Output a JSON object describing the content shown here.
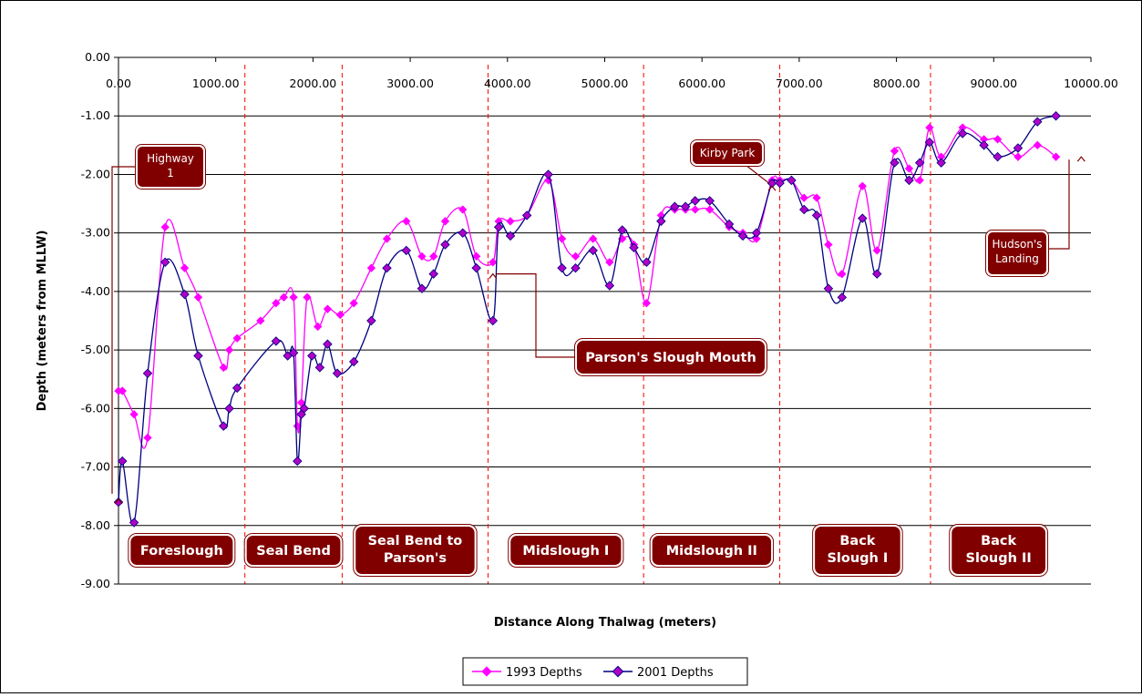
{
  "chart_data": {
    "type": "line",
    "xlabel": "Distance Along Thalwag (meters)",
    "ylabel": "Depth (meters from MLLW)",
    "xlim": [
      0,
      10000
    ],
    "ylim": [
      -9,
      0
    ],
    "x_ticks": [
      "0.00",
      "1000.00",
      "2000.00",
      "3000.00",
      "4000.00",
      "5000.00",
      "6000.00",
      "7000.00",
      "8000.00",
      "9000.00",
      "10000.00"
    ],
    "y_ticks": [
      "0.00",
      "-1.00",
      "-2.00",
      "-3.00",
      "-4.00",
      "-5.00",
      "-6.00",
      "-7.00",
      "-8.00",
      "-9.00"
    ],
    "grid": "horizontal",
    "legend_position": "bottom",
    "series": [
      {
        "name": "1993 Depths",
        "color": "#ff00ff",
        "points": [
          [
            0,
            -5.7
          ],
          [
            40,
            -5.7
          ],
          [
            160,
            -6.1
          ],
          [
            300,
            -6.5
          ],
          [
            480,
            -2.9
          ],
          [
            680,
            -3.6
          ],
          [
            820,
            -4.1
          ],
          [
            1140,
            -5.0
          ],
          [
            1080,
            -5.3
          ],
          [
            1220,
            -4.8
          ],
          [
            1460,
            -4.5
          ],
          [
            1620,
            -4.2
          ],
          [
            1700,
            -4.1
          ],
          [
            1800,
            -4.1
          ],
          [
            1840,
            -6.3
          ],
          [
            1880,
            -5.9
          ],
          [
            1940,
            -4.1
          ],
          [
            2050,
            -4.6
          ],
          [
            2150,
            -4.3
          ],
          [
            2280,
            -4.4
          ],
          [
            2420,
            -4.2
          ],
          [
            2600,
            -3.6
          ],
          [
            2760,
            -3.1
          ],
          [
            2960,
            -2.8
          ],
          [
            3120,
            -3.4
          ],
          [
            3240,
            -3.4
          ],
          [
            3360,
            -2.8
          ],
          [
            3540,
            -2.6
          ],
          [
            3680,
            -3.4
          ],
          [
            3850,
            -3.5
          ],
          [
            3910,
            -2.8
          ],
          [
            4030,
            -2.8
          ],
          [
            4200,
            -2.7
          ],
          [
            4420,
            -2.1
          ],
          [
            4560,
            -3.1
          ],
          [
            4700,
            -3.4
          ],
          [
            4880,
            -3.1
          ],
          [
            5050,
            -3.5
          ],
          [
            5180,
            -3.1
          ],
          [
            5300,
            -3.2
          ],
          [
            5430,
            -4.2
          ],
          [
            5580,
            -2.7
          ],
          [
            5720,
            -2.6
          ],
          [
            5830,
            -2.6
          ],
          [
            5930,
            -2.6
          ],
          [
            6080,
            -2.6
          ],
          [
            6280,
            -2.9
          ],
          [
            6420,
            -3.0
          ],
          [
            6560,
            -3.1
          ],
          [
            6720,
            -2.1
          ],
          [
            6800,
            -2.1
          ],
          [
            6920,
            -2.1
          ],
          [
            7050,
            -2.4
          ],
          [
            7180,
            -2.4
          ],
          [
            7300,
            -3.2
          ],
          [
            7440,
            -3.7
          ],
          [
            7650,
            -2.2
          ],
          [
            7800,
            -3.3
          ],
          [
            7980,
            -1.6
          ],
          [
            8130,
            -1.9
          ],
          [
            8240,
            -2.1
          ],
          [
            8340,
            -1.2
          ],
          [
            8460,
            -1.7
          ],
          [
            8680,
            -1.2
          ],
          [
            8900,
            -1.4
          ],
          [
            9040,
            -1.4
          ],
          [
            9250,
            -1.7
          ],
          [
            9450,
            -1.5
          ],
          [
            9640,
            -1.7
          ]
        ]
      },
      {
        "name": "2001 Depths",
        "color": "#000080",
        "marker_color": "#b000c8",
        "points": [
          [
            0,
            -7.6
          ],
          [
            40,
            -6.9
          ],
          [
            160,
            -7.95
          ],
          [
            300,
            -5.4
          ],
          [
            480,
            -3.5
          ],
          [
            680,
            -4.05
          ],
          [
            820,
            -5.1
          ],
          [
            1140,
            -6.0
          ],
          [
            1080,
            -6.3
          ],
          [
            1220,
            -5.65
          ],
          [
            1620,
            -4.85
          ],
          [
            1740,
            -5.1
          ],
          [
            1800,
            -5.05
          ],
          [
            1840,
            -6.9
          ],
          [
            1880,
            -6.1
          ],
          [
            1910,
            -6.0
          ],
          [
            1990,
            -5.1
          ],
          [
            2070,
            -5.3
          ],
          [
            2150,
            -4.9
          ],
          [
            2250,
            -5.4
          ],
          [
            2420,
            -5.2
          ],
          [
            2600,
            -4.5
          ],
          [
            2760,
            -3.6
          ],
          [
            2960,
            -3.3
          ],
          [
            3120,
            -3.95
          ],
          [
            3240,
            -3.7
          ],
          [
            3360,
            -3.2
          ],
          [
            3540,
            -3.0
          ],
          [
            3680,
            -3.6
          ],
          [
            3850,
            -4.5
          ],
          [
            3910,
            -2.9
          ],
          [
            4030,
            -3.05
          ],
          [
            4200,
            -2.7
          ],
          [
            4420,
            -2.0
          ],
          [
            4560,
            -3.6
          ],
          [
            4700,
            -3.6
          ],
          [
            4880,
            -3.3
          ],
          [
            5050,
            -3.9
          ],
          [
            5180,
            -2.95
          ],
          [
            5300,
            -3.25
          ],
          [
            5430,
            -3.5
          ],
          [
            5580,
            -2.8
          ],
          [
            5720,
            -2.55
          ],
          [
            5830,
            -2.55
          ],
          [
            5930,
            -2.45
          ],
          [
            6080,
            -2.45
          ],
          [
            6280,
            -2.85
          ],
          [
            6420,
            -3.05
          ],
          [
            6560,
            -3.0
          ],
          [
            6720,
            -2.15
          ],
          [
            6800,
            -2.15
          ],
          [
            6920,
            -2.1
          ],
          [
            7050,
            -2.6
          ],
          [
            7180,
            -2.7
          ],
          [
            7300,
            -3.95
          ],
          [
            7440,
            -4.1
          ],
          [
            7650,
            -2.75
          ],
          [
            7800,
            -3.7
          ],
          [
            7980,
            -1.8
          ],
          [
            8130,
            -2.1
          ],
          [
            8240,
            -1.8
          ],
          [
            8340,
            -1.45
          ],
          [
            8460,
            -1.8
          ],
          [
            8680,
            -1.3
          ],
          [
            8900,
            -1.5
          ],
          [
            9040,
            -1.7
          ],
          [
            9250,
            -1.55
          ],
          [
            9450,
            -1.1
          ],
          [
            9640,
            -1.0
          ]
        ]
      }
    ],
    "section_boundaries": [
      1300,
      2300,
      3800,
      5400,
      6800,
      8350
    ],
    "section_labels": [
      {
        "lines": [
          "Foreslough"
        ],
        "x": 650
      },
      {
        "lines": [
          "Seal Bend"
        ],
        "x": 1800
      },
      {
        "lines": [
          "Seal Bend to",
          "Parson's"
        ],
        "x": 3050
      },
      {
        "lines": [
          "Midslough I"
        ],
        "x": 4600
      },
      {
        "lines": [
          "Midslough II"
        ],
        "x": 6100
      },
      {
        "lines": [
          "Back",
          "Slough I"
        ],
        "x": 7600
      },
      {
        "lines": [
          "Back",
          "Slough II"
        ],
        "x": 9050
      }
    ],
    "annotations": [
      {
        "lines": [
          "Highway",
          "1"
        ],
        "style": "small",
        "target": [
          0,
          -7.55
        ]
      },
      {
        "lines": [
          "Kirby Park"
        ],
        "style": "small",
        "target": [
          6720,
          -2.2
        ]
      },
      {
        "lines": [
          "Hudson's",
          "Landing"
        ],
        "style": "small",
        "target": [
          9900,
          -1.7
        ]
      },
      {
        "lines": [
          "Parson's Slough Mouth"
        ],
        "style": "big",
        "target": [
          3850,
          -3.7
        ]
      }
    ]
  }
}
